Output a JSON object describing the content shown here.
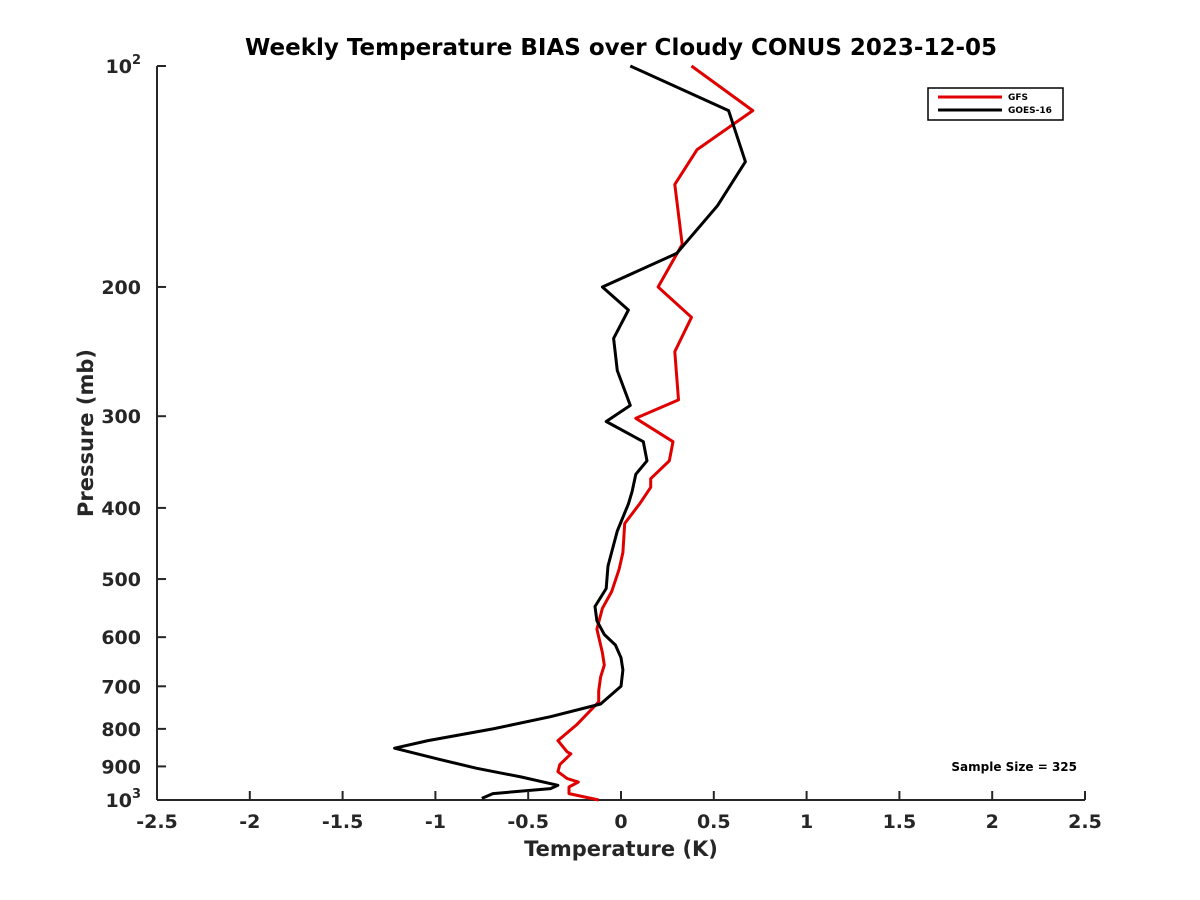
{
  "chart_data": {
    "type": "line",
    "title": "Weekly Temperature BIAS over Cloudy CONUS 2023-12-05",
    "xlabel": "Temperature (K)",
    "ylabel": "Pressure (mb)",
    "xlim": [
      -2.5,
      2.5
    ],
    "ylim": [
      100,
      1000
    ],
    "y_scale": "log",
    "y_reversed": true,
    "grid": false,
    "legend_position": "top-right",
    "x_ticks": [
      "-2.5",
      "-2",
      "-1.5",
      "-1",
      "-0.5",
      "0",
      "0.5",
      "1",
      "1.5",
      "2",
      "2.5"
    ],
    "x_tick_values": [
      -2.5,
      -2,
      -1.5,
      -1,
      -0.5,
      0,
      0.5,
      1,
      1.5,
      2,
      2.5
    ],
    "y_ticks": [
      {
        "value": 100,
        "base": "10",
        "exp": "2"
      },
      {
        "value": 200,
        "label": "200"
      },
      {
        "value": 300,
        "label": "300"
      },
      {
        "value": 400,
        "label": "400"
      },
      {
        "value": 500,
        "label": "500"
      },
      {
        "value": 600,
        "label": "600"
      },
      {
        "value": 700,
        "label": "700"
      },
      {
        "value": 800,
        "label": "800"
      },
      {
        "value": 900,
        "label": "900"
      },
      {
        "value": 1000,
        "base": "10",
        "exp": "3"
      }
    ],
    "annotation": "Sample Size = 325",
    "series": [
      {
        "name": "GFS",
        "color": "#e00000",
        "points": [
          [
            0.38,
            100
          ],
          [
            0.71,
            115
          ],
          [
            0.41,
            130
          ],
          [
            0.29,
            145
          ],
          [
            0.33,
            175
          ],
          [
            0.2,
            200
          ],
          [
            0.38,
            220
          ],
          [
            0.29,
            245
          ],
          [
            0.31,
            285
          ],
          [
            0.08,
            302
          ],
          [
            0.28,
            325
          ],
          [
            0.26,
            345
          ],
          [
            0.16,
            365
          ],
          [
            0.16,
            375
          ],
          [
            0.1,
            395
          ],
          [
            0.02,
            420
          ],
          [
            0.01,
            460
          ],
          [
            -0.01,
            485
          ],
          [
            -0.05,
            520
          ],
          [
            -0.1,
            548
          ],
          [
            -0.13,
            585
          ],
          [
            -0.1,
            630
          ],
          [
            -0.09,
            655
          ],
          [
            -0.11,
            680
          ],
          [
            -0.12,
            710
          ],
          [
            -0.12,
            735
          ],
          [
            -0.24,
            790
          ],
          [
            -0.34,
            830
          ],
          [
            -0.29,
            860
          ],
          [
            -0.27,
            865
          ],
          [
            -0.33,
            895
          ],
          [
            -0.34,
            915
          ],
          [
            -0.29,
            935
          ],
          [
            -0.23,
            945
          ],
          [
            -0.28,
            960
          ],
          [
            -0.28,
            980
          ],
          [
            -0.12,
            1000
          ]
        ]
      },
      {
        "name": "GOES-16",
        "color": "#000000",
        "points": [
          [
            0.05,
            100
          ],
          [
            0.58,
            115
          ],
          [
            0.67,
            135
          ],
          [
            0.52,
            155
          ],
          [
            0.3,
            180
          ],
          [
            -0.1,
            200
          ],
          [
            0.04,
            215
          ],
          [
            -0.04,
            235
          ],
          [
            -0.02,
            260
          ],
          [
            0.05,
            290
          ],
          [
            -0.08,
            305
          ],
          [
            0.12,
            325
          ],
          [
            0.14,
            345
          ],
          [
            0.08,
            360
          ],
          [
            0.06,
            380
          ],
          [
            0.04,
            395
          ],
          [
            -0.02,
            430
          ],
          [
            -0.07,
            480
          ],
          [
            -0.08,
            515
          ],
          [
            -0.14,
            545
          ],
          [
            -0.13,
            570
          ],
          [
            -0.09,
            595
          ],
          [
            -0.03,
            615
          ],
          [
            0.0,
            640
          ],
          [
            0.01,
            665
          ],
          [
            0.0,
            700
          ],
          [
            -0.11,
            740
          ],
          [
            -0.38,
            770
          ],
          [
            -0.69,
            800
          ],
          [
            -1.04,
            830
          ],
          [
            -1.22,
            850
          ],
          [
            -0.98,
            880
          ],
          [
            -0.78,
            905
          ],
          [
            -0.54,
            930
          ],
          [
            -0.34,
            955
          ],
          [
            -0.38,
            965
          ],
          [
            -0.69,
            980
          ],
          [
            -0.75,
            995
          ]
        ]
      }
    ]
  }
}
